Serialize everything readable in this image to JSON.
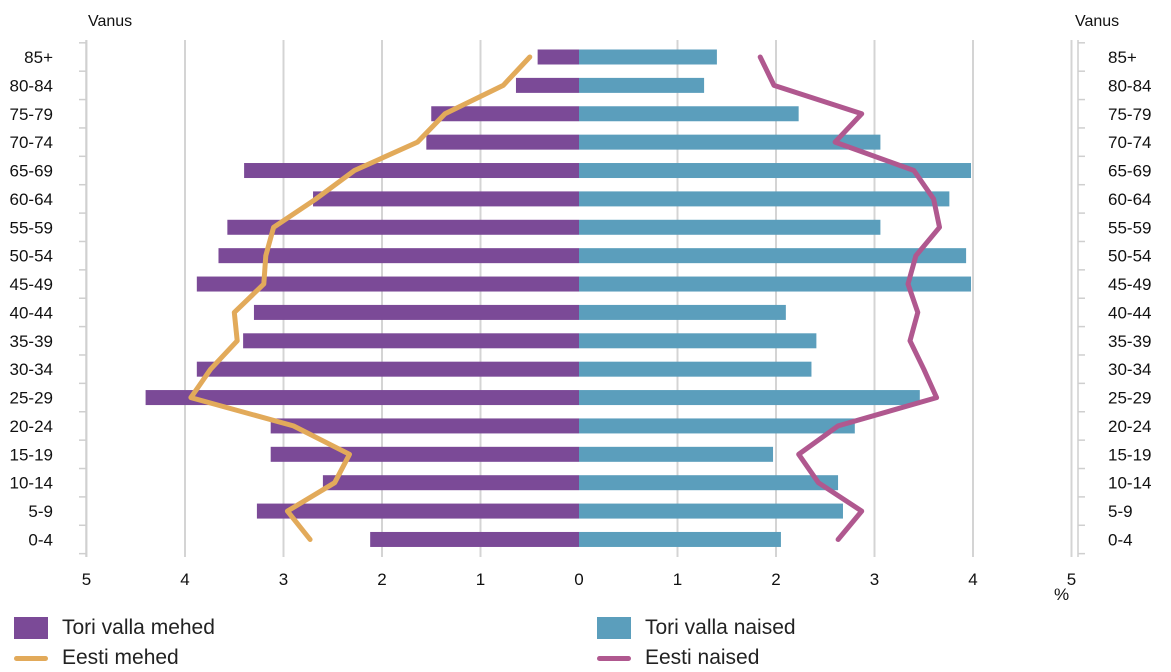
{
  "chart_data": {
    "type": "population-pyramid",
    "left_axis_label": "Vanus",
    "right_axis_label": "Vanus",
    "x_unit": "%",
    "x_range": [
      -5,
      5
    ],
    "x_ticks": [
      "5",
      "4",
      "3",
      "2",
      "1",
      "0",
      "1",
      "2",
      "3",
      "4",
      "5"
    ],
    "grid": true,
    "categories": [
      "85+",
      "80-84",
      "75-79",
      "70-74",
      "65-69",
      "60-64",
      "55-59",
      "50-54",
      "45-49",
      "40-44",
      "35-39",
      "30-34",
      "25-29",
      "20-24",
      "15-19",
      "10-14",
      "5-9",
      "0-4"
    ],
    "series": [
      {
        "name": "Tori valla mehed",
        "kind": "bar",
        "side": "left",
        "color": "#7b4a97",
        "values": [
          0.42,
          0.64,
          1.5,
          1.55,
          3.4,
          2.7,
          3.57,
          3.66,
          3.88,
          3.3,
          3.41,
          3.88,
          4.4,
          3.13,
          3.13,
          2.6,
          3.27,
          2.12
        ]
      },
      {
        "name": "Tori valla naised",
        "kind": "bar",
        "side": "right",
        "color": "#5b9ebc",
        "values": [
          1.4,
          1.27,
          2.23,
          3.06,
          3.98,
          3.76,
          3.06,
          3.93,
          3.98,
          2.1,
          2.41,
          2.36,
          3.46,
          2.8,
          1.97,
          2.63,
          2.68,
          2.05
        ]
      },
      {
        "name": "Eesti mehed",
        "kind": "line",
        "side": "left",
        "color": "#e2aa5a",
        "values": [
          0.5,
          0.77,
          1.36,
          1.64,
          2.28,
          2.67,
          3.1,
          3.18,
          3.2,
          3.5,
          3.47,
          3.74,
          3.94,
          2.9,
          2.33,
          2.48,
          2.96,
          2.73
        ]
      },
      {
        "name": "Eesti naised",
        "kind": "line",
        "side": "right",
        "color": "#b0588f",
        "values": [
          1.84,
          1.98,
          2.87,
          2.6,
          3.4,
          3.6,
          3.66,
          3.42,
          3.34,
          3.44,
          3.36,
          3.5,
          3.63,
          2.63,
          2.23,
          2.43,
          2.87,
          2.63
        ]
      }
    ]
  },
  "legend": {
    "men_bar": "Tori valla mehed",
    "women_bar": "Tori valla naised",
    "men_line": "Eesti mehed",
    "women_line": "Eesti naised"
  }
}
